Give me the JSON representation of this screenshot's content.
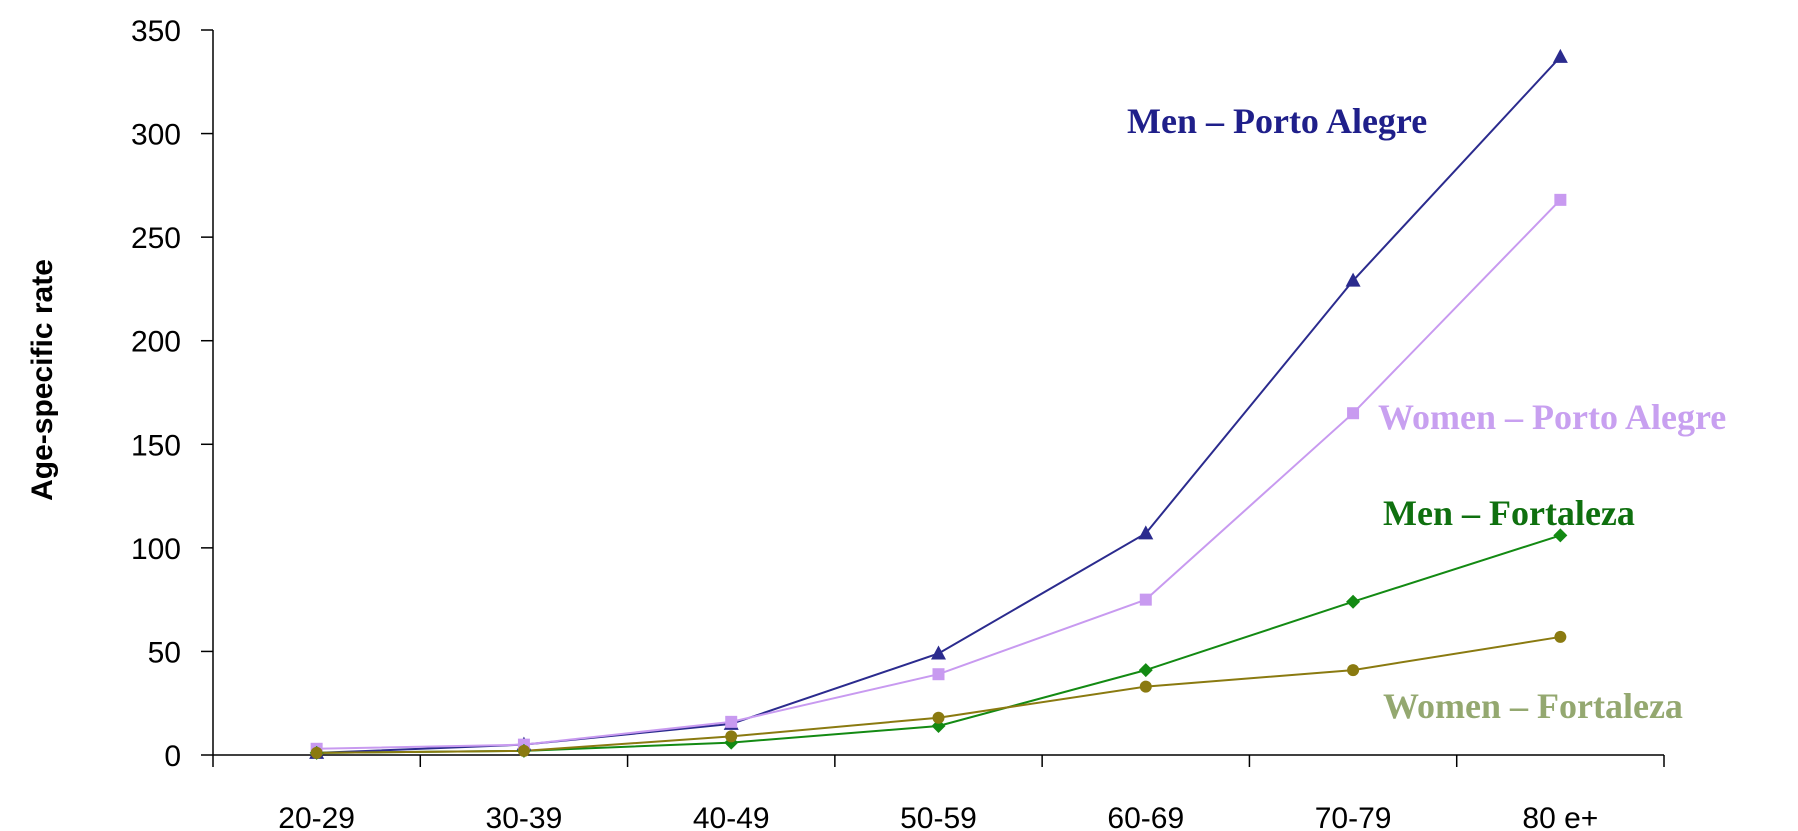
{
  "chart_data": {
    "type": "line",
    "ylabel": "Age-specific rate",
    "xlabel": "",
    "title": "",
    "categories": [
      "20-29",
      "30-39",
      "40-49",
      "50-59",
      "60-69",
      "70-79",
      "80 e+"
    ],
    "ylim": [
      0,
      350
    ],
    "yticks": [
      0,
      50,
      100,
      150,
      200,
      250,
      300,
      350
    ],
    "grid": false,
    "legend": "inline labels",
    "series": [
      {
        "name": "Men – Porto Alegre",
        "color": "#2b2b8e",
        "label_color": "#1f1f8a",
        "marker": "triangle",
        "values": [
          1,
          5,
          15,
          49,
          107,
          229,
          337
        ]
      },
      {
        "name": "Women – Porto Alegre",
        "color": "#c89af0",
        "label_color": "#c8a0f0",
        "marker": "square",
        "values": [
          3,
          5,
          16,
          39,
          75,
          165,
          268
        ]
      },
      {
        "name": "Men – Fortaleza",
        "color": "#138a13",
        "label_color": "#0f700f",
        "marker": "diamond",
        "values": [
          1,
          2,
          6,
          14,
          41,
          74,
          106
        ]
      },
      {
        "name": "Women – Fortaleza",
        "color": "#8a7a10",
        "label_color": "#94a870",
        "marker": "circle",
        "values": [
          1,
          2,
          9,
          18,
          33,
          41,
          57
        ]
      }
    ]
  }
}
